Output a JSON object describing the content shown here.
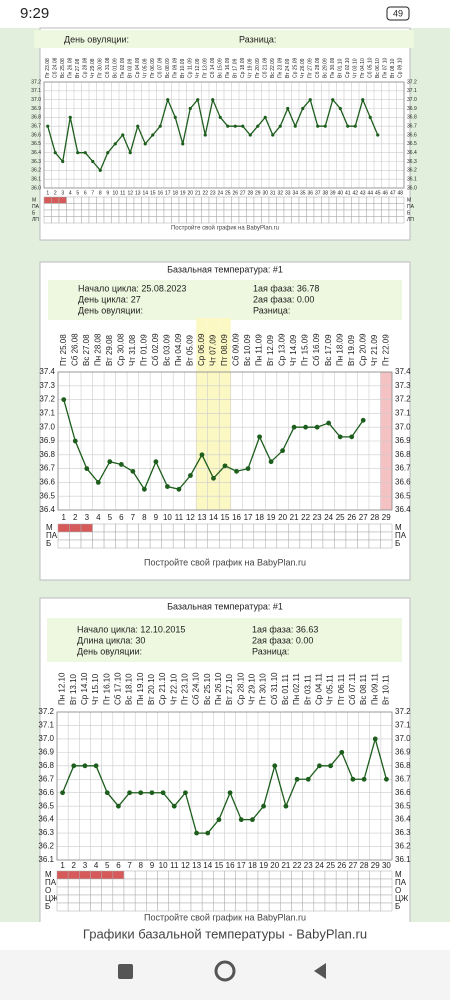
{
  "status_bar": {
    "time": "9:29",
    "battery": "49"
  },
  "chart_data": [
    {
      "type": "line",
      "header": [
        "День овуляции:",
        "Разница:"
      ],
      "categories": [
        1,
        2,
        3,
        4,
        5,
        6,
        7,
        8,
        9,
        10,
        11,
        12,
        13,
        14,
        15,
        16,
        17,
        18,
        19,
        20,
        21,
        22,
        23,
        24,
        25,
        26,
        27,
        28,
        29,
        30,
        31,
        32,
        33,
        34,
        35,
        36,
        37,
        38,
        39,
        40,
        41,
        42,
        43,
        44,
        45,
        46,
        47,
        48
      ],
      "dates": [
        "Пт 23.08",
        "Сб 24.08",
        "Вс 25.08",
        "Пн 26.08",
        "Вт 27.08",
        "Ср 28.08",
        "Чт 29.08",
        "Пт 30.08",
        "Сб 31.08",
        "Вс 01.09",
        "Пн 02.09",
        "Вт 03.09",
        "Ср 04.09",
        "Чт 05.09",
        "Пт 06.09",
        "Сб 07.09",
        "Вс 08.09",
        "Пн 09.09",
        "Вт 10.09",
        "Ср 11.09",
        "Чт 12.09",
        "Пт 13.09",
        "Сб 14.09",
        "Вс 15.09",
        "Пн 16.09",
        "Вт 17.09",
        "Ср 18.09",
        "Чт 19.09",
        "Пт 20.09",
        "Сб 21.09",
        "Вс 22.09",
        "Пн 23.09",
        "Вт 24.09",
        "Ср 25.09",
        "Чт 26.09",
        "Пт 27.09",
        "Сб 28.09",
        "Вс 29.09",
        "Пн 30.09",
        "Вт 01.10",
        "Ср 02.10",
        "Чт 03.10",
        "Пт 04.10",
        "Сб 05.10",
        "Вс 06.10",
        "Пн 07.10",
        "Вт 08.10",
        "Ср 09.10"
      ],
      "values": [
        36.7,
        36.4,
        36.3,
        36.8,
        36.4,
        36.4,
        36.3,
        36.2,
        36.4,
        36.5,
        36.6,
        36.4,
        36.7,
        36.5,
        36.6,
        36.7,
        37.0,
        36.8,
        36.5,
        36.9,
        37.0,
        36.6,
        37.0,
        36.8,
        36.7,
        36.7,
        36.7,
        36.6,
        36.7,
        36.8,
        36.6,
        36.7,
        36.9,
        36.7,
        36.9,
        37.0,
        36.7,
        36.7,
        37.0,
        36.9,
        36.7,
        36.7,
        37.0,
        36.8,
        36.6,
        null,
        null,
        null
      ],
      "ylim": [
        36.0,
        37.2
      ],
      "yticks": [
        {
          "value": 36.0,
          "label": "36.0"
        },
        36.1,
        36.2,
        36.3,
        36.4,
        36.5,
        36.6,
        36.7,
        36.8,
        36.9,
        {
          "value": 37.0,
          "label": "37.0"
        },
        37.1,
        37.2
      ],
      "color": "#1d5e1d",
      "rows": [
        "М",
        "ПА",
        "Б",
        "ЛП"
      ],
      "period_days": 3,
      "caption": "Постройте свой график на BabyPlan.ru"
    },
    {
      "type": "line",
      "title": "Базальная температура: #1",
      "header": [
        "Начало цикла: 25.08.2023",
        "1ая фаза: 36.78",
        "День цикла: 27",
        "2ая фаза: 0.00",
        "День овуляции:",
        "Разница:"
      ],
      "categories": [
        1,
        2,
        3,
        4,
        5,
        6,
        7,
        8,
        9,
        10,
        11,
        12,
        13,
        14,
        15,
        16,
        17,
        18,
        19,
        20,
        21,
        22,
        23,
        24,
        25,
        26,
        27,
        28,
        29
      ],
      "dates": [
        "Пт 25.08",
        "Сб 26.08",
        "Вс 27.08",
        "Пн 28.08",
        "Вт 29.08",
        "Ср 30.08",
        "Чт 31.08",
        "Пт 01.09",
        "Сб 02.09",
        "Вс 03.09",
        "Пн 04.09",
        "Вт 05.09",
        "Ср 06.09",
        "Чт 07.09",
        "Пт 08.09",
        "Сб 09.09",
        "Вс 10.09",
        "Пн 11.09",
        "Вт 12.09",
        "Ср 13.09",
        "Чт 14.09",
        "Пт 15.09",
        "Сб 16.09",
        "Вс 17.09",
        "Пн 18.09",
        "Вт 19.09",
        "Ср 20.09",
        "Чт 21.09",
        "Пт 22.09"
      ],
      "values": [
        37.2,
        36.9,
        36.7,
        36.6,
        36.75,
        36.73,
        36.68,
        36.55,
        36.75,
        36.57,
        36.55,
        36.65,
        36.8,
        36.63,
        36.72,
        36.68,
        36.7,
        36.93,
        36.75,
        36.83,
        37.0,
        37.0,
        37.0,
        37.03,
        36.93,
        36.93,
        37.05,
        null,
        null
      ],
      "ylim": [
        36.4,
        37.4
      ],
      "yticks": [
        36.4,
        36.5,
        36.6,
        36.7,
        36.8,
        36.9,
        {
          "value": 37.0,
          "label": "37.0"
        },
        37.1,
        37.2,
        37.3,
        37.4
      ],
      "color": "#1d5e1d",
      "rows": [
        "М",
        "ПА",
        "Б"
      ],
      "period_days": 3,
      "highlight_days": [
        13,
        14,
        15
      ],
      "pink_days": [
        29
      ],
      "caption": "Постройте свой график на BabyPlan.ru"
    },
    {
      "type": "line",
      "title": "Базальная температура: #1",
      "header": [
        "Начало цикла: 12.10.2015",
        "1ая фаза: 36.63",
        "Длина цикла: 30",
        "2ая фаза: 0.00",
        "День овуляции:",
        "Разница:"
      ],
      "categories": [
        1,
        2,
        3,
        4,
        5,
        6,
        7,
        8,
        9,
        10,
        11,
        12,
        13,
        14,
        15,
        16,
        17,
        18,
        19,
        20,
        21,
        22,
        23,
        24,
        25,
        26,
        27,
        28,
        29,
        30
      ],
      "dates": [
        "Пн 12.10",
        "Вт 13.10",
        "Ср 14.10",
        "Чт 15.10",
        "Пт 16.10",
        "Сб 17.10",
        "Вс 18.10",
        "Пн 19.10",
        "Вт 20.10",
        "Ср 21.10",
        "Чт 22.10",
        "Пт 23.10",
        "Сб 24.10",
        "Вс 25.10",
        "Пн 26.10",
        "Вт 27.10",
        "Ср 28.10",
        "Чт 29.10",
        "Пт 30.10",
        "Сб 31.10",
        "Вс 01.11",
        "Пн 02.11",
        "Вт 03.11",
        "Ср 04.11",
        "Чт 05.11",
        "Пт 06.11",
        "Сб 07.11",
        "Вс 08.11",
        "Пн 09.11",
        "Вт 10.11"
      ],
      "values": [
        36.6,
        36.8,
        36.8,
        36.8,
        36.6,
        36.5,
        36.6,
        36.6,
        36.6,
        36.6,
        36.5,
        36.6,
        36.3,
        36.3,
        36.4,
        36.6,
        36.4,
        36.4,
        36.5,
        36.8,
        36.5,
        36.7,
        36.7,
        36.8,
        36.8,
        36.9,
        36.7,
        36.7,
        37.0,
        36.7
      ],
      "ylim": [
        36.1,
        37.2
      ],
      "yticks": [
        36.1,
        36.2,
        36.3,
        36.4,
        36.5,
        36.6,
        36.7,
        36.8,
        36.9,
        {
          "value": 37.0,
          "label": "37.0"
        },
        37.1,
        37.2
      ],
      "color": "#1d5e1d",
      "rows": [
        "М",
        "ПА",
        "О",
        "ЦЖ",
        "Б"
      ],
      "period_days": 6,
      "caption": "Постройте свой график на BabyPlan.ru"
    }
  ],
  "footer": "Графики базальной температуры - BabyPlan.ru"
}
